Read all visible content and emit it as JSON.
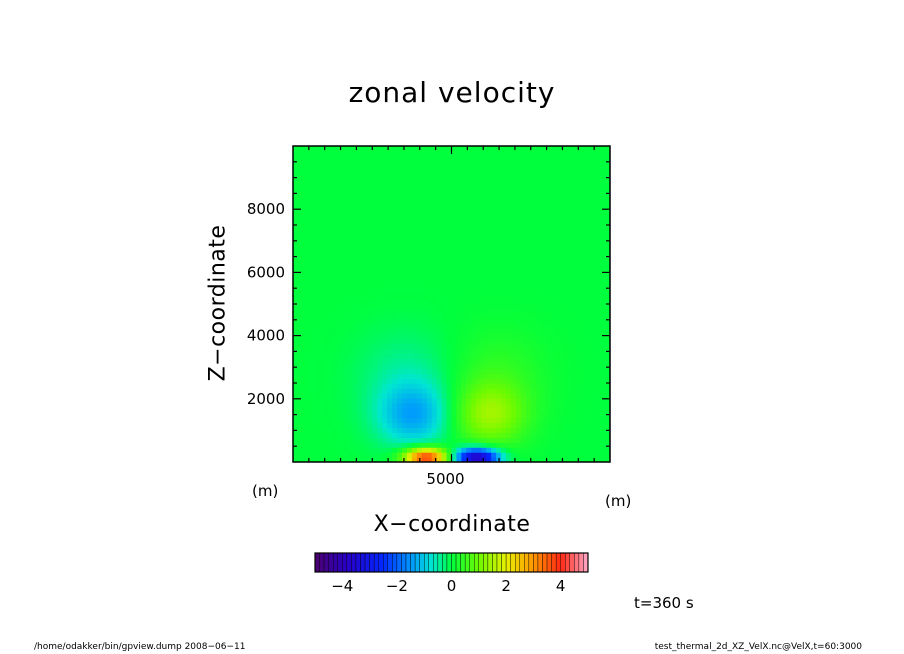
{
  "chart_data": {
    "type": "heatmap",
    "title": "zonal velocity",
    "xlabel": "X−coordinate",
    "ylabel": "Z−coordinate",
    "x_unit": "(m)",
    "y_unit": "(m)",
    "xlim": [
      0,
      10000
    ],
    "ylim": [
      0,
      10000
    ],
    "x_ticks": [
      {
        "value": 5000,
        "label": "5000"
      }
    ],
    "y_ticks": [
      {
        "value": 2000,
        "label": "2000"
      },
      {
        "value": 4000,
        "label": "4000"
      },
      {
        "value": 6000,
        "label": "6000"
      },
      {
        "value": 8000,
        "label": "8000"
      }
    ],
    "colorbar": {
      "range": [
        -5,
        5
      ],
      "ticks": [
        {
          "value": -4,
          "label": "−4"
        },
        {
          "value": -2,
          "label": "−2"
        },
        {
          "value": 0,
          "label": "0"
        },
        {
          "value": 2,
          "label": "2"
        },
        {
          "value": 4,
          "label": "4"
        }
      ]
    },
    "features": [
      {
        "x": 4200,
        "z": 150,
        "value": 4.0,
        "sx": 500,
        "sz": 220
      },
      {
        "x": 5800,
        "z": 150,
        "value": -4.0,
        "sx": 500,
        "sz": 220
      },
      {
        "x": 3800,
        "z": 1500,
        "value": -1.3,
        "sx": 800,
        "sz": 700
      },
      {
        "x": 6200,
        "z": 1500,
        "value": 1.3,
        "sx": 800,
        "sz": 700
      },
      {
        "x": 3600,
        "z": 2800,
        "value": -0.4,
        "sx": 1100,
        "sz": 1000
      },
      {
        "x": 6400,
        "z": 2800,
        "value": 0.4,
        "sx": 1100,
        "sz": 1000
      }
    ]
  },
  "annotations": {
    "time": "t=360 s",
    "footer_left": "/home/odakker/bin/gpview.dump  2008−06−11",
    "footer_right": "test_thermal_2d_XZ_VelX.nc@VelX,t=60:3000"
  }
}
